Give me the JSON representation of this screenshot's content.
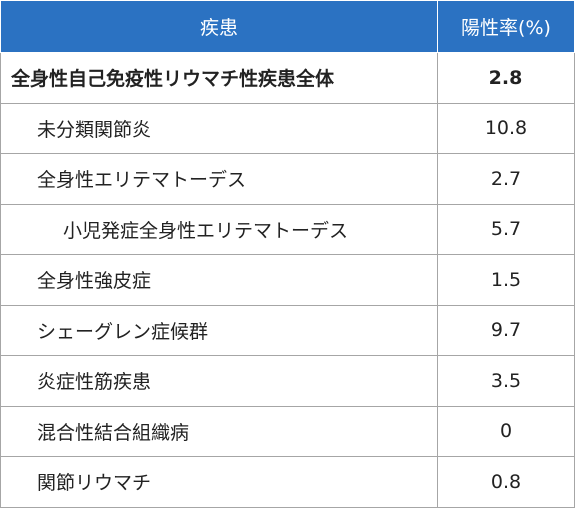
{
  "table": {
    "header": [
      "疾患",
      "陽性率(%)"
    ],
    "rows": [
      [
        "全身性自己免疫性リウマチ性疾患全体",
        2.8
      ],
      [
        "未分類関節炎",
        10.8
      ],
      [
        "全身性エリテマトーデス",
        2.7
      ],
      [
        "小児発症全身性エリテマトーデス",
        5.7
      ],
      [
        "全身性強皮症",
        1.5
      ],
      [
        "シェーグレン症候群",
        9.7
      ],
      [
        "炎症性筋疾患",
        3.5
      ],
      [
        "混合性結合組織病",
        0
      ],
      [
        "関節リウマチ",
        0.8
      ]
    ]
  }
}
